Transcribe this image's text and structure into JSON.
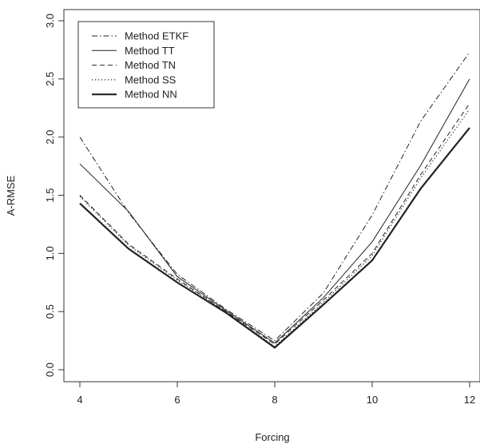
{
  "chart_data": {
    "type": "line",
    "title": "",
    "xlabel": "Forcing",
    "ylabel": "A-RMSE",
    "xlim": [
      4,
      12
    ],
    "ylim": [
      0.0,
      3.0
    ],
    "x_ticks": [
      4,
      6,
      8,
      10,
      12
    ],
    "y_ticks": [
      "0.0",
      "0.5",
      "1.0",
      "1.5",
      "2.0",
      "2.5",
      "3.0"
    ],
    "grid": false,
    "legend_position": "top-left",
    "x": [
      4,
      5,
      6,
      7,
      8,
      9,
      10,
      11,
      12
    ],
    "series": [
      {
        "name": "Method ETKF",
        "dash": "dashdot",
        "width": 1,
        "values": [
          2.0,
          1.35,
          0.82,
          0.52,
          0.25,
          0.66,
          1.33,
          2.14,
          2.73
        ]
      },
      {
        "name": "Method TT",
        "dash": "solid",
        "width": 1,
        "values": [
          1.77,
          1.36,
          0.8,
          0.51,
          0.23,
          0.62,
          1.1,
          1.76,
          2.5
        ]
      },
      {
        "name": "Method TN",
        "dash": "dashed",
        "width": 1,
        "values": [
          1.5,
          1.08,
          0.78,
          0.5,
          0.22,
          0.6,
          1.0,
          1.68,
          2.29
        ]
      },
      {
        "name": "Method SS",
        "dash": "dotted",
        "width": 1.2,
        "values": [
          1.49,
          1.07,
          0.77,
          0.5,
          0.2,
          0.58,
          0.98,
          1.65,
          2.24
        ]
      },
      {
        "name": "Method NN",
        "dash": "solid",
        "width": 2.2,
        "values": [
          1.43,
          1.04,
          0.75,
          0.49,
          0.19,
          0.56,
          0.94,
          1.56,
          2.08
        ]
      }
    ]
  }
}
